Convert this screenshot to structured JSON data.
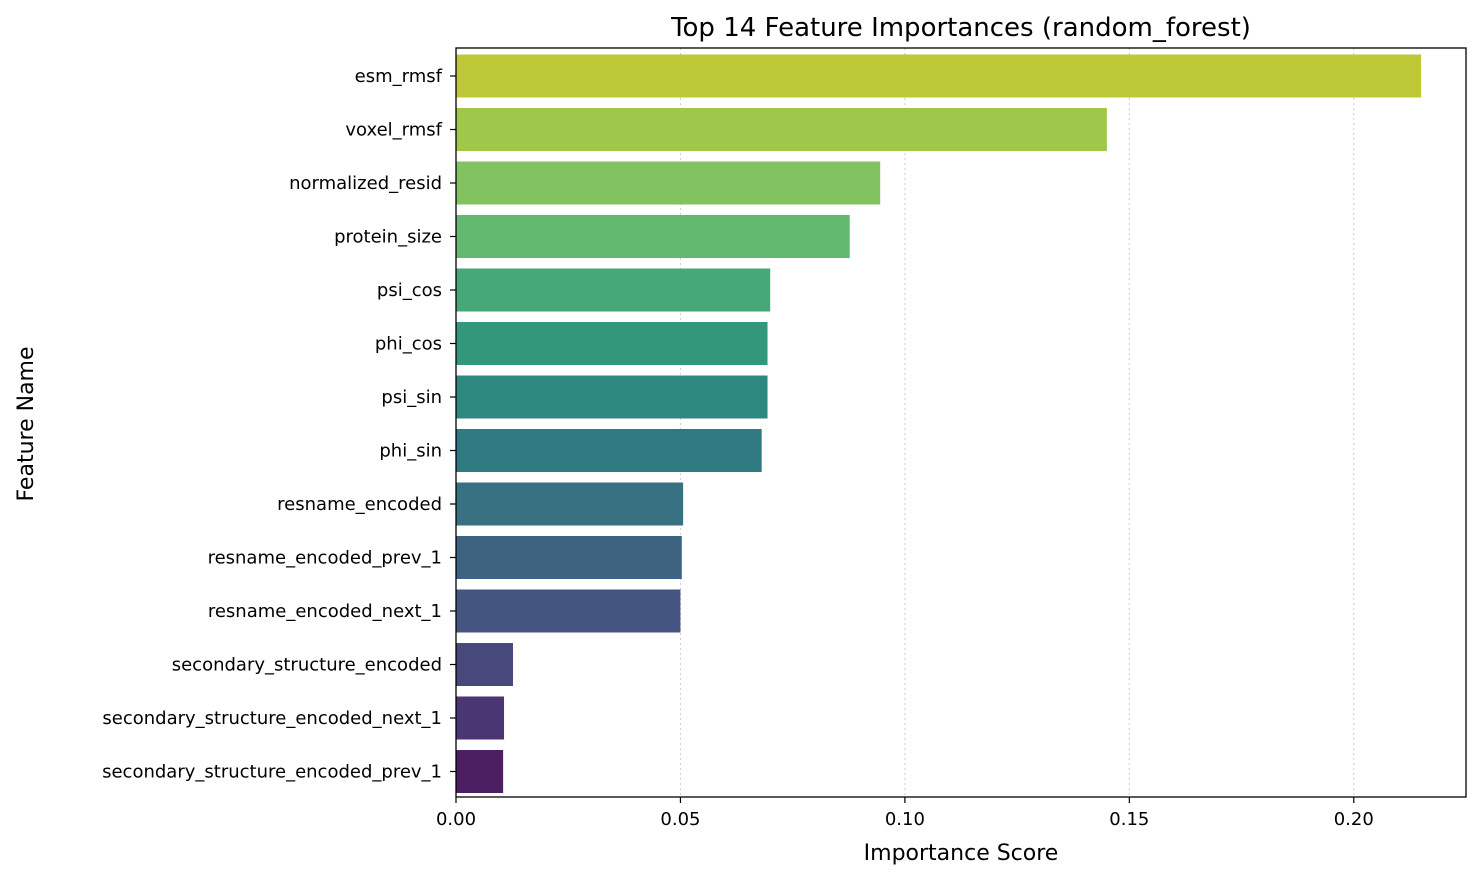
{
  "chart_data": {
    "type": "bar",
    "orientation": "horizontal",
    "title": "Top 14 Feature Importances (random_forest)",
    "xlabel": "Importance Score",
    "ylabel": "Feature Name",
    "xlim": [
      0,
      0.225
    ],
    "xticks": [
      0.0,
      0.05,
      0.1,
      0.15,
      0.2
    ],
    "xtick_labels": [
      "0.00",
      "0.05",
      "0.10",
      "0.15",
      "0.20"
    ],
    "grid": "x-dotted",
    "categories": [
      "esm_rmsf",
      "voxel_rmsf",
      "normalized_resid",
      "protein_size",
      "psi_cos",
      "phi_cos",
      "psi_sin",
      "phi_sin",
      "resname_encoded",
      "resname_encoded_prev_1",
      "resname_encoded_next_1",
      "secondary_structure_encoded",
      "secondary_structure_encoded_next_1",
      "secondary_structure_encoded_prev_1"
    ],
    "values": [
      0.215,
      0.145,
      0.0945,
      0.0877,
      0.07,
      0.0694,
      0.0694,
      0.0681,
      0.0506,
      0.0503,
      0.05,
      0.0127,
      0.0107,
      0.0105
    ],
    "colors": [
      "#bcc836",
      "#9fc84b",
      "#82c261",
      "#63b870",
      "#46a877",
      "#33977c",
      "#2d8980",
      "#307b82",
      "#377182",
      "#3e6381",
      "#44567f",
      "#47487b",
      "#4a3672",
      "#4b1f62"
    ]
  }
}
